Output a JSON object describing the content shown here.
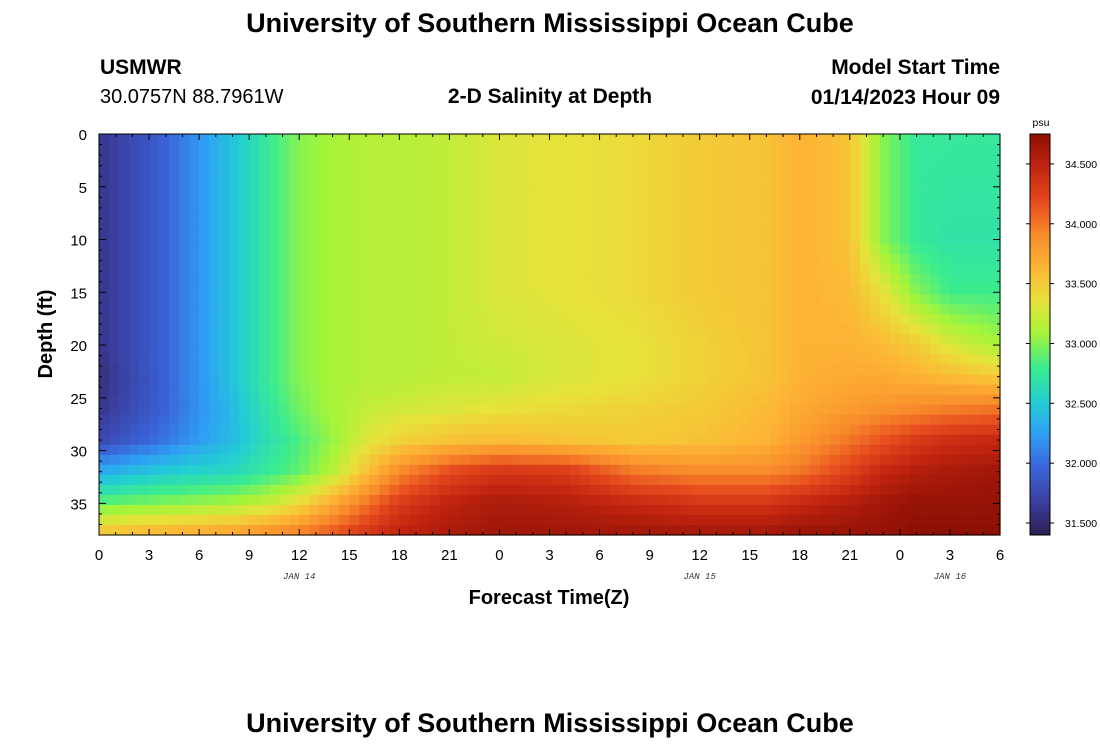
{
  "header": {
    "title": "University of Southern Mississippi Ocean Cube",
    "station": "USMWR",
    "coords": "30.0757N  88.7961W",
    "plot_title": "2-D Salinity at Depth",
    "start_label": "Model Start Time",
    "start_value": "01/14/2023 Hour 09"
  },
  "footer": {
    "title": "University of Southern Mississippi Ocean Cube"
  },
  "colors": {
    "background": "#ffffff",
    "colormap": [
      "#2d1e4f",
      "#3b3fa0",
      "#3a63d8",
      "#2f9ff5",
      "#22cfd3",
      "#3bec8f",
      "#a3f53a",
      "#e8e23a",
      "#fdb535",
      "#f88a2b",
      "#e5491d",
      "#c22510",
      "#8c0f04"
    ]
  },
  "chart_data": {
    "type": "heatmap",
    "xlabel": "Forecast Time(Z)",
    "ylabel": "Depth (ft)",
    "x_unit": "hours since Jan 14 00Z",
    "xlim": [
      0,
      54
    ],
    "ylim": [
      38,
      0
    ],
    "x_ticks": [
      0,
      3,
      6,
      9,
      12,
      15,
      18,
      21,
      24,
      27,
      30,
      33,
      36,
      39,
      42,
      45,
      48,
      51,
      54
    ],
    "x_tick_labels": [
      "0",
      "3",
      "6",
      "9",
      "12",
      "15",
      "18",
      "21",
      "0",
      "3",
      "6",
      "9",
      "12",
      "15",
      "18",
      "21",
      "0",
      "3",
      "6"
    ],
    "y_ticks": [
      0,
      5,
      10,
      15,
      20,
      25,
      30,
      35
    ],
    "y_tick_labels": [
      "0",
      "5",
      "10",
      "15",
      "20",
      "25",
      "30",
      "35"
    ],
    "day_labels": [
      {
        "text": "JAN 14",
        "x": 12
      },
      {
        "text": "JAN 15",
        "x": 36
      },
      {
        "text": "JAN 16",
        "x": 51
      }
    ],
    "colorbar": {
      "unit": "psu",
      "vmin": 31.4,
      "vmax": 34.75,
      "ticks": [
        31.5,
        32.0,
        32.5,
        33.0,
        33.5,
        34.0,
        34.5
      ],
      "tick_labels": [
        "31.500",
        "32.000",
        "32.500",
        "33.000",
        "33.500",
        "34.000",
        "34.500"
      ]
    },
    "grid": {
      "times": [
        0,
        4,
        8,
        10,
        12,
        14,
        16,
        18,
        21,
        24,
        28,
        32,
        36,
        40,
        42,
        45,
        47,
        49,
        51,
        54
      ],
      "depths": [
        0,
        10,
        15,
        20,
        23,
        26,
        29,
        32,
        35,
        38
      ],
      "salinity": [
        [
          31.6,
          31.95,
          32.45,
          32.75,
          33.0,
          33.1,
          33.15,
          33.15,
          33.2,
          33.3,
          33.35,
          33.4,
          33.5,
          33.55,
          33.65,
          33.55,
          33.0,
          32.75,
          32.75,
          32.75
        ],
        [
          31.6,
          31.95,
          32.45,
          32.75,
          33.0,
          33.1,
          33.15,
          33.15,
          33.2,
          33.3,
          33.35,
          33.4,
          33.5,
          33.55,
          33.65,
          33.55,
          33.0,
          32.75,
          32.7,
          32.7
        ],
        [
          31.6,
          31.95,
          32.45,
          32.75,
          33.0,
          33.1,
          33.15,
          33.15,
          33.2,
          33.3,
          33.35,
          33.4,
          33.5,
          33.55,
          33.65,
          33.6,
          33.35,
          33.0,
          32.8,
          32.8
        ],
        [
          31.6,
          31.95,
          32.45,
          32.75,
          33.0,
          33.1,
          33.15,
          33.15,
          33.2,
          33.25,
          33.3,
          33.35,
          33.45,
          33.55,
          33.65,
          33.65,
          33.6,
          33.5,
          33.3,
          33.1
        ],
        [
          31.55,
          31.95,
          32.45,
          32.75,
          33.0,
          33.1,
          33.15,
          33.15,
          33.2,
          33.2,
          33.3,
          33.35,
          33.45,
          33.55,
          33.65,
          33.7,
          33.7,
          33.65,
          33.6,
          33.5
        ],
        [
          31.6,
          31.95,
          32.4,
          32.7,
          32.95,
          33.1,
          33.2,
          33.25,
          33.3,
          33.35,
          33.4,
          33.45,
          33.5,
          33.6,
          33.7,
          33.8,
          33.85,
          33.9,
          33.95,
          34.0
        ],
        [
          31.75,
          32.05,
          32.4,
          32.65,
          32.85,
          33.05,
          33.3,
          33.45,
          33.55,
          33.6,
          33.55,
          33.5,
          33.55,
          33.65,
          33.8,
          34.0,
          34.15,
          34.3,
          34.4,
          34.45
        ],
        [
          32.3,
          32.5,
          32.6,
          32.75,
          32.9,
          33.15,
          33.55,
          33.9,
          34.2,
          34.35,
          34.3,
          34.0,
          33.9,
          33.9,
          34.0,
          34.25,
          34.45,
          34.55,
          34.6,
          34.65
        ],
        [
          32.9,
          33.0,
          33.1,
          33.2,
          33.4,
          33.7,
          34.0,
          34.3,
          34.5,
          34.6,
          34.55,
          34.45,
          34.35,
          34.35,
          34.45,
          34.55,
          34.65,
          34.7,
          34.7,
          34.7
        ],
        [
          33.6,
          33.7,
          33.8,
          33.9,
          34.0,
          34.15,
          34.35,
          34.5,
          34.6,
          34.65,
          34.65,
          34.65,
          34.65,
          34.65,
          34.7,
          34.7,
          34.7,
          34.75,
          34.75,
          34.75
        ]
      ]
    }
  }
}
